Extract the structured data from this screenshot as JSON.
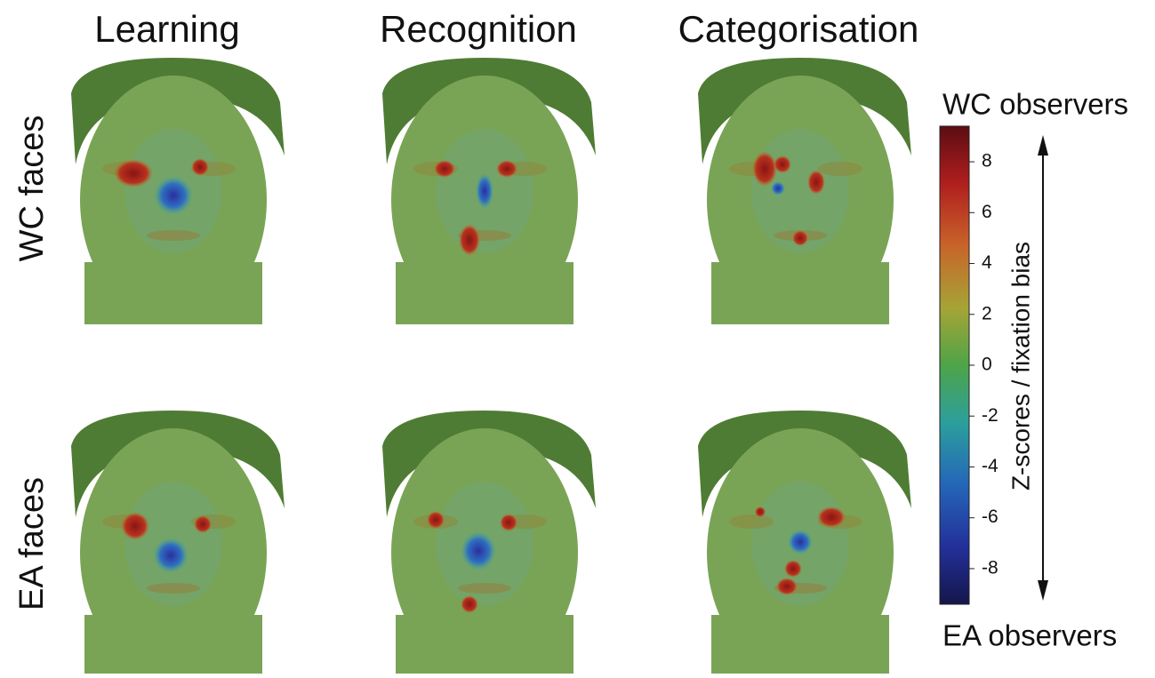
{
  "columns": [
    "Learning",
    "Recognition",
    "Categorisation"
  ],
  "rows": [
    "WC faces",
    "EA faces"
  ],
  "colorbar": {
    "top_label": "WC observers",
    "bottom_label": "EA observers",
    "axis_label": "Z-scores / fixation bias",
    "lim": [
      -9.4,
      9.4
    ],
    "ticks": [
      8,
      6,
      4,
      2,
      0,
      -2,
      -4,
      -6,
      -8
    ]
  }
}
